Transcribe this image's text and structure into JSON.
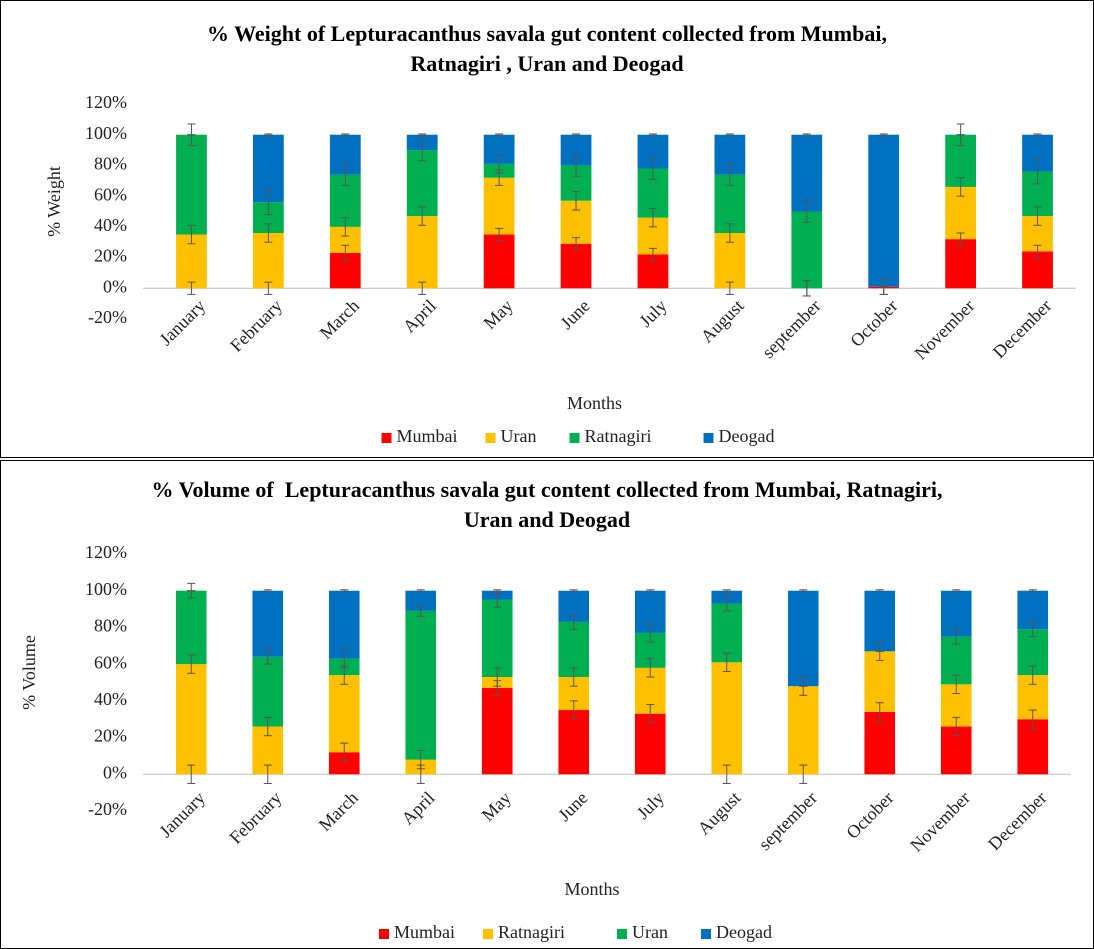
{
  "chart_data": [
    {
      "type": "stacked_bar",
      "title": "% Weight of Lepturacanthus savala gut content collected from Mumbai, Ratnagiri , Uran and Deogad",
      "x_label": "Months",
      "y_label": "% Weight",
      "categories": [
        "January",
        "February",
        "March",
        "April",
        "May",
        "June",
        "July",
        "August",
        "september",
        "October",
        "November",
        "December"
      ],
      "series": [
        {
          "name": "Mumbai",
          "color": "#ff0000",
          "values": [
            0,
            0,
            23,
            0,
            35,
            29,
            22,
            0,
            0,
            1,
            32,
            24
          ],
          "errors": [
            4,
            4,
            5,
            4,
            4,
            4,
            4,
            4,
            5,
            5,
            4,
            4
          ]
        },
        {
          "name": "Uran",
          "color": "#ffc000",
          "values": [
            35,
            36,
            17,
            47,
            37,
            28,
            24,
            36,
            0,
            0,
            34,
            23
          ],
          "errors": [
            6,
            6,
            6,
            6,
            5,
            6,
            6,
            6,
            5,
            5,
            6,
            6
          ]
        },
        {
          "name": "Ratnagiri",
          "color": "#00b050",
          "values": [
            65,
            20,
            34,
            43,
            9,
            23,
            32,
            38,
            50,
            0,
            34,
            29
          ],
          "errors": [
            7,
            8,
            7,
            7,
            6,
            7,
            7,
            7,
            7,
            0,
            7,
            8
          ]
        },
        {
          "name": "Deogad",
          "color": "#0070c0",
          "values": [
            0,
            44,
            26,
            10,
            19,
            20,
            22,
            26,
            50,
            99,
            0,
            24
          ],
          "errors": [
            0,
            0.5,
            0.5,
            0.5,
            0.5,
            0.5,
            0.5,
            0.5,
            0.5,
            0.5,
            0,
            0.5
          ]
        }
      ],
      "ylim": [
        -20,
        120
      ],
      "yticks": [
        {
          "value": -20,
          "label": "-20%"
        },
        {
          "value": 0,
          "label": "0%"
        },
        {
          "value": 20,
          "label": "20%"
        },
        {
          "value": 40,
          "label": "40%"
        },
        {
          "value": 60,
          "label": "60%"
        },
        {
          "value": 80,
          "label": "80%"
        },
        {
          "value": 100,
          "label": "100%"
        },
        {
          "value": 120,
          "label": "120%"
        }
      ],
      "grid": false,
      "legend": "bottom"
    },
    {
      "type": "stacked_bar",
      "title": "% Volume of  Lepturacanthus savala gut content collected from Mumbai, Ratnagiri,  Uran and Deogad",
      "x_label": "Months",
      "y_label": "% Volume",
      "categories": [
        "January",
        "February",
        "March",
        "April",
        "May",
        "June",
        "July",
        "August",
        "september",
        "October",
        "November",
        "December"
      ],
      "series": [
        {
          "name": "Mumbai",
          "color": "#ff0000",
          "values": [
            0,
            0,
            12,
            0,
            47,
            35,
            33,
            0,
            0,
            34,
            26,
            30
          ],
          "errors": [
            5,
            5,
            5,
            5,
            4,
            5,
            5,
            5,
            5,
            5,
            5,
            5
          ]
        },
        {
          "name": "Ratnagiri",
          "color": "#ffc000",
          "values": [
            60,
            26,
            42,
            8,
            6,
            18,
            25,
            61,
            48,
            33,
            23,
            24
          ],
          "errors": [
            5,
            5,
            5,
            5,
            5,
            5,
            5,
            5,
            5,
            5,
            5,
            5
          ]
        },
        {
          "name": "Uran",
          "color": "#00b050",
          "values": [
            40,
            38,
            9,
            81,
            42,
            30,
            19,
            32,
            0,
            0,
            26,
            25
          ],
          "errors": [
            4,
            4,
            5,
            3,
            4,
            4,
            5,
            4,
            0,
            0,
            4,
            4
          ]
        },
        {
          "name": "Deogad",
          "color": "#0070c0",
          "values": [
            0,
            36,
            37,
            11,
            5,
            17,
            23,
            7,
            52,
            33,
            25,
            21
          ],
          "errors": [
            0,
            0.5,
            0.5,
            0.5,
            0.5,
            0.5,
            0.5,
            0.5,
            0.5,
            0.5,
            0.5,
            0.5
          ]
        }
      ],
      "ylim": [
        -20,
        120
      ],
      "yticks": [
        {
          "value": -20,
          "label": "-20%"
        },
        {
          "value": 0,
          "label": "0%"
        },
        {
          "value": 20,
          "label": "20%"
        },
        {
          "value": 40,
          "label": "40%"
        },
        {
          "value": 60,
          "label": "60%"
        },
        {
          "value": 80,
          "label": "80%"
        },
        {
          "value": 100,
          "label": "100%"
        },
        {
          "value": 120,
          "label": "120%"
        }
      ],
      "grid": false,
      "legend": "bottom"
    }
  ]
}
